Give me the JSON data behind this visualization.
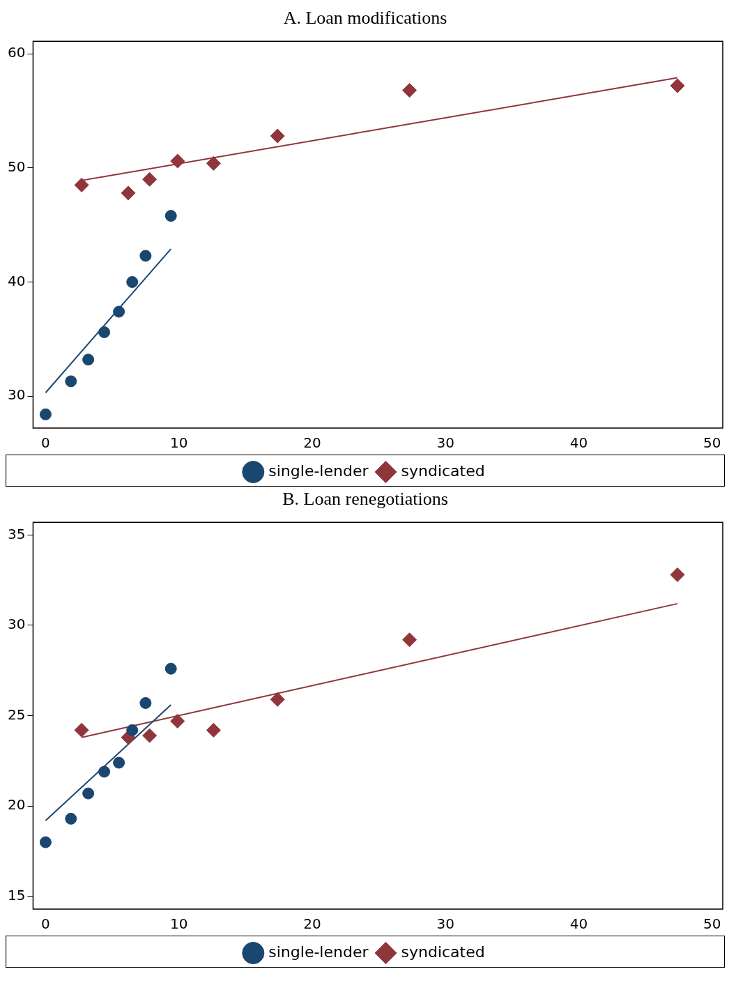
{
  "chart_data": [
    {
      "type": "scatter",
      "title": "A. Loan modifications",
      "xlim": [
        -0.94,
        50.8
      ],
      "xticks": [
        0,
        10,
        20,
        30,
        40,
        50
      ],
      "ylim": [
        27.2,
        61.1
      ],
      "yticks": [
        30,
        40,
        50,
        60
      ],
      "grid": false,
      "legend": "bottom",
      "series": [
        {
          "name": "single-lender",
          "color": "#1a476f",
          "marker": "circle",
          "x": [
            0,
            1.9,
            3.2,
            4.4,
            5.5,
            6.5,
            7.5,
            9.4
          ],
          "values": [
            28.4,
            31.3,
            33.2,
            35.6,
            37.4,
            40.0,
            42.3,
            45.8
          ]
        },
        {
          "name": "syndicated",
          "color": "#90353b",
          "marker": "diamond",
          "x": [
            2.7,
            6.2,
            7.8,
            9.9,
            12.6,
            17.4,
            27.3,
            47.4
          ],
          "values": [
            48.5,
            47.8,
            49.0,
            50.6,
            50.4,
            52.8,
            56.8,
            57.2
          ]
        },
        {
          "type": "line",
          "color": "#1a476f",
          "marker": "none",
          "x": [
            0,
            9.4
          ],
          "values": [
            30.3,
            42.9
          ]
        },
        {
          "type": "line",
          "color": "#90353b",
          "marker": "none",
          "x": [
            2.7,
            47.4
          ],
          "values": [
            48.9,
            57.9
          ]
        }
      ]
    },
    {
      "type": "scatter",
      "title": "B. Loan renegotiations",
      "xlim": [
        -0.94,
        50.8
      ],
      "xticks": [
        0,
        10,
        20,
        30,
        40,
        50
      ],
      "ylim": [
        14.3,
        35.7
      ],
      "yticks": [
        15,
        20,
        25,
        30,
        35
      ],
      "grid": false,
      "legend": "bottom",
      "series": [
        {
          "name": "single-lender",
          "color": "#1a476f",
          "marker": "circle",
          "x": [
            0,
            1.9,
            3.2,
            4.4,
            5.5,
            6.5,
            7.5,
            9.4
          ],
          "values": [
            18.0,
            19.3,
            20.7,
            21.9,
            22.4,
            24.2,
            25.7,
            27.6
          ]
        },
        {
          "name": "syndicated",
          "color": "#90353b",
          "marker": "diamond",
          "x": [
            2.7,
            6.2,
            7.8,
            9.9,
            12.6,
            17.4,
            27.3,
            47.4
          ],
          "values": [
            24.2,
            23.8,
            23.9,
            24.7,
            24.2,
            25.9,
            29.2,
            32.8
          ]
        },
        {
          "type": "line",
          "color": "#1a476f",
          "marker": "none",
          "x": [
            0,
            9.4
          ],
          "values": [
            19.2,
            25.6
          ]
        },
        {
          "type": "line",
          "color": "#90353b",
          "marker": "none",
          "x": [
            2.7,
            47.4
          ],
          "values": [
            23.8,
            31.2
          ]
        }
      ]
    }
  ]
}
